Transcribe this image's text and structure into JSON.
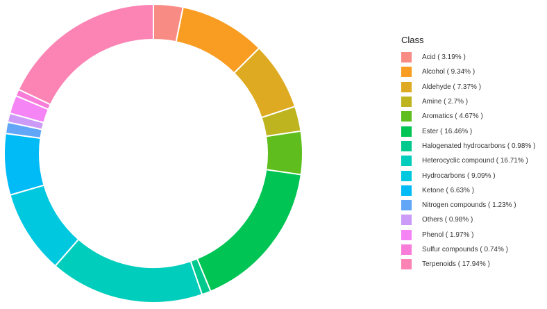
{
  "chart_data": {
    "type": "pie",
    "style": "donut",
    "legend_title": "Class",
    "legend_position": "right",
    "start": "12 o'clock, clockwise",
    "slices": [
      {
        "label": "Acid",
        "value": 3.19,
        "legend": "Acid ( 3.19% )",
        "color": "#F88C85"
      },
      {
        "label": "Alcohol",
        "value": 9.34,
        "legend": "Alcohol ( 9.34% )",
        "color": "#F99D22"
      },
      {
        "label": "Aldehyde",
        "value": 7.37,
        "legend": "Aldehyde ( 7.37% )",
        "color": "#DEAA21"
      },
      {
        "label": "Amine",
        "value": 2.7,
        "legend": "Amine ( 2.7% )",
        "color": "#BDB420"
      },
      {
        "label": "Aromatics",
        "value": 4.67,
        "legend": "Aromatics ( 4.67% )",
        "color": "#5FBE1E"
      },
      {
        "label": "Ester",
        "value": 16.46,
        "legend": "Ester ( 16.46% )",
        "color": "#00C453"
      },
      {
        "label": "Halogenated hydrocarbons",
        "value": 0.98,
        "legend": "Halogenated hydrocarbons ( 0.98% )",
        "color": "#00C98D"
      },
      {
        "label": "Heterocyclic compound",
        "value": 16.71,
        "legend": "Heterocyclic compound ( 16.71% )",
        "color": "#00CDBB"
      },
      {
        "label": "Hydrocarbons",
        "value": 9.09,
        "legend": "Hydrocarbons ( 9.09% )",
        "color": "#00C8DF"
      },
      {
        "label": "Ketone",
        "value": 6.63,
        "legend": "Ketone ( 6.63% )",
        "color": "#00BBF6"
      },
      {
        "label": "Nitrogen compounds",
        "value": 1.23,
        "legend": "Nitrogen compounds ( 1.23% )",
        "color": "#62A6F8"
      },
      {
        "label": "Others",
        "value": 0.98,
        "legend": "Others ( 0.98% )",
        "color": "#CC9BF7"
      },
      {
        "label": "Phenol",
        "value": 1.97,
        "legend": "Phenol ( 1.97% )",
        "color": "#F585F5"
      },
      {
        "label": "Sulfur compounds",
        "value": 0.74,
        "legend": "Sulfur compounds ( 0.74% )",
        "color": "#F77DD8"
      },
      {
        "label": "Terpenoids",
        "value": 17.94,
        "legend": "Terpenoids ( 17.94% )",
        "color": "#FB84B4"
      }
    ]
  }
}
